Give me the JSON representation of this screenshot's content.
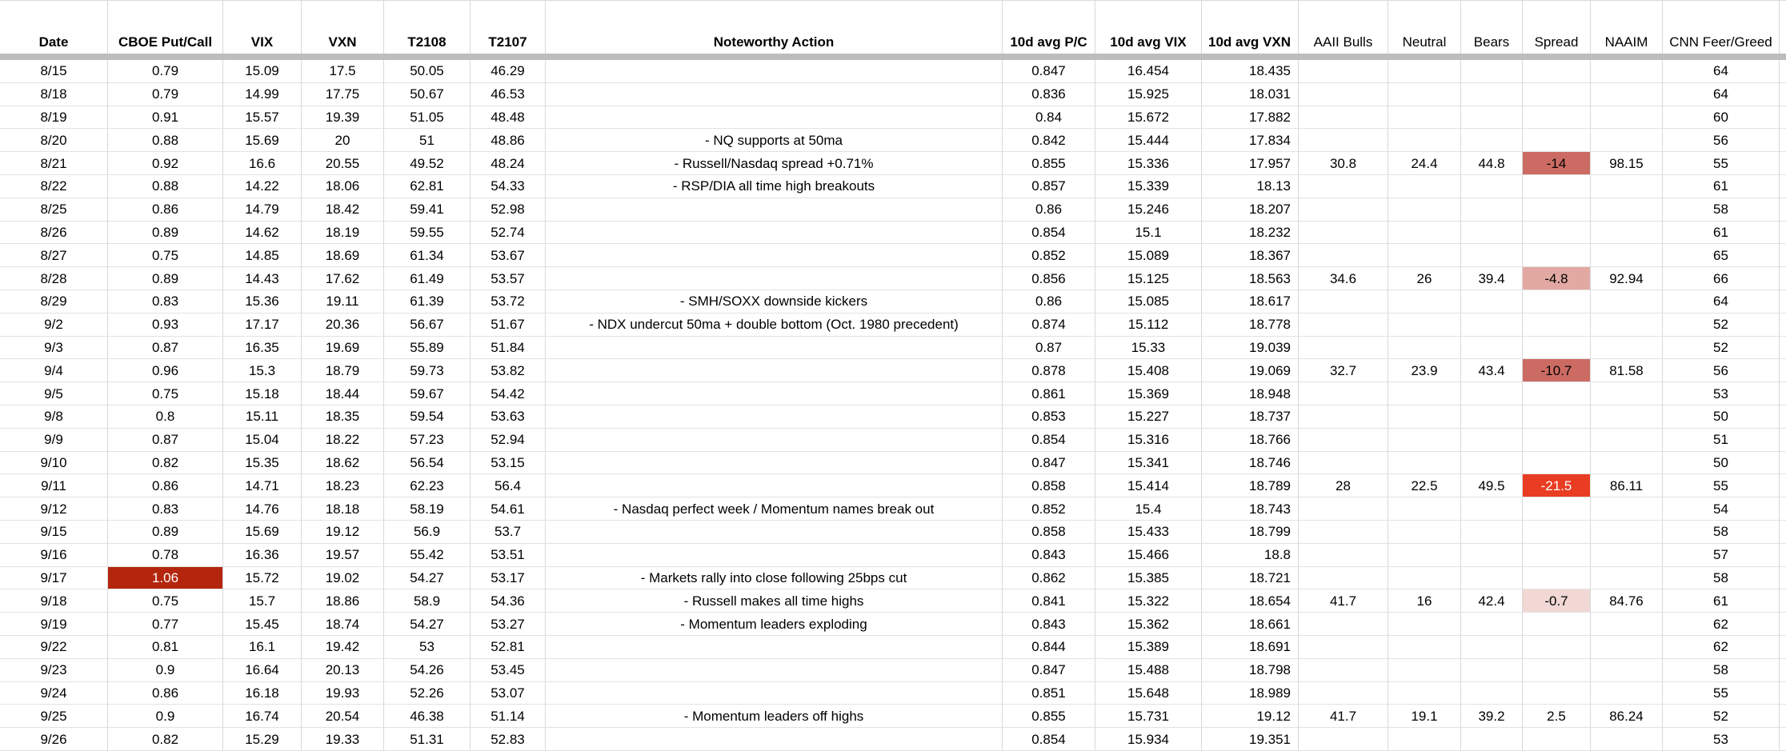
{
  "table": {
    "columns": [
      {
        "label": "Date"
      },
      {
        "label": "CBOE Put/Call"
      },
      {
        "label": "VIX"
      },
      {
        "label": "VXN"
      },
      {
        "label": "T2108"
      },
      {
        "label": "T2107"
      },
      {
        "label": "Noteworthy Action"
      },
      {
        "label": "10d avg P/C"
      },
      {
        "label": "10d avg VIX"
      },
      {
        "label": "10d avg VXN"
      },
      {
        "label": "AAII Bulls"
      },
      {
        "label": "Neutral"
      },
      {
        "label": "Bears"
      },
      {
        "label": "Spread"
      },
      {
        "label": "NAAIM"
      },
      {
        "label": "CNN Feer/Greed"
      }
    ],
    "rows": [
      {
        "cells": [
          "8/15",
          "0.79",
          "15.09",
          "17.5",
          "50.05",
          "46.29",
          "",
          "0.847",
          "16.454",
          "18.435",
          "",
          "",
          "",
          "",
          "",
          "64"
        ]
      },
      {
        "cells": [
          "8/18",
          "0.79",
          "14.99",
          "17.75",
          "50.67",
          "46.53",
          "",
          "0.836",
          "15.925",
          "18.031",
          "",
          "",
          "",
          "",
          "",
          "64"
        ]
      },
      {
        "cells": [
          "8/19",
          "0.91",
          "15.57",
          "19.39",
          "51.05",
          "48.48",
          "",
          "0.84",
          "15.672",
          "17.882",
          "",
          "",
          "",
          "",
          "",
          "60"
        ]
      },
      {
        "cells": [
          "8/20",
          "0.88",
          "15.69",
          "20",
          "51",
          "48.86",
          "- NQ supports at 50ma",
          "0.842",
          "15.444",
          "17.834",
          "",
          "",
          "",
          "",
          "",
          "56"
        ]
      },
      {
        "cells": [
          "8/21",
          "0.92",
          "16.6",
          "20.55",
          "49.52",
          "48.24",
          "- Russell/Nasdaq spread +0.71%",
          "0.855",
          "15.336",
          "17.957",
          "30.8",
          "24.4",
          "44.8",
          "-14",
          "98.15",
          "55"
        ],
        "highlights": {
          "13": {
            "bg": "#cc6b63",
            "fg": "#000000"
          }
        }
      },
      {
        "cells": [
          "8/22",
          "0.88",
          "14.22",
          "18.06",
          "62.81",
          "54.33",
          "- RSP/DIA all time high breakouts",
          "0.857",
          "15.339",
          "18.13",
          "",
          "",
          "",
          "",
          "",
          "61"
        ]
      },
      {
        "cells": [
          "8/25",
          "0.86",
          "14.79",
          "18.42",
          "59.41",
          "52.98",
          "",
          "0.86",
          "15.246",
          "18.207",
          "",
          "",
          "",
          "",
          "",
          "58"
        ]
      },
      {
        "cells": [
          "8/26",
          "0.89",
          "14.62",
          "18.19",
          "59.55",
          "52.74",
          "",
          "0.854",
          "15.1",
          "18.232",
          "",
          "",
          "",
          "",
          "",
          "61"
        ]
      },
      {
        "cells": [
          "8/27",
          "0.75",
          "14.85",
          "18.69",
          "61.34",
          "53.67",
          "",
          "0.852",
          "15.089",
          "18.367",
          "",
          "",
          "",
          "",
          "",
          "65"
        ]
      },
      {
        "cells": [
          "8/28",
          "0.89",
          "14.43",
          "17.62",
          "61.49",
          "53.57",
          "",
          "0.856",
          "15.125",
          "18.563",
          "34.6",
          "26",
          "39.4",
          "-4.8",
          "92.94",
          "66"
        ],
        "highlights": {
          "13": {
            "bg": "#e2a9a3",
            "fg": "#000000"
          }
        }
      },
      {
        "cells": [
          "8/29",
          "0.83",
          "15.36",
          "19.11",
          "61.39",
          "53.72",
          "- SMH/SOXX downside kickers",
          "0.86",
          "15.085",
          "18.617",
          "",
          "",
          "",
          "",
          "",
          "64"
        ]
      },
      {
        "cells": [
          "9/2",
          "0.93",
          "17.17",
          "20.36",
          "56.67",
          "51.67",
          "- NDX undercut 50ma + double bottom (Oct. 1980 precedent)",
          "0.874",
          "15.112",
          "18.778",
          "",
          "",
          "",
          "",
          "",
          "52"
        ]
      },
      {
        "cells": [
          "9/3",
          "0.87",
          "16.35",
          "19.69",
          "55.89",
          "51.84",
          "",
          "0.87",
          "15.33",
          "19.039",
          "",
          "",
          "",
          "",
          "",
          "52"
        ]
      },
      {
        "cells": [
          "9/4",
          "0.96",
          "15.3",
          "18.79",
          "59.73",
          "53.82",
          "",
          "0.878",
          "15.408",
          "19.069",
          "32.7",
          "23.9",
          "43.4",
          "-10.7",
          "81.58",
          "56"
        ],
        "highlights": {
          "13": {
            "bg": "#cc6b63",
            "fg": "#000000"
          }
        }
      },
      {
        "cells": [
          "9/5",
          "0.75",
          "15.18",
          "18.44",
          "59.67",
          "54.42",
          "",
          "0.861",
          "15.369",
          "18.948",
          "",
          "",
          "",
          "",
          "",
          "53"
        ]
      },
      {
        "cells": [
          "9/8",
          "0.8",
          "15.11",
          "18.35",
          "59.54",
          "53.63",
          "",
          "0.853",
          "15.227",
          "18.737",
          "",
          "",
          "",
          "",
          "",
          "50"
        ]
      },
      {
        "cells": [
          "9/9",
          "0.87",
          "15.04",
          "18.22",
          "57.23",
          "52.94",
          "",
          "0.854",
          "15.316",
          "18.766",
          "",
          "",
          "",
          "",
          "",
          "51"
        ]
      },
      {
        "cells": [
          "9/10",
          "0.82",
          "15.35",
          "18.62",
          "56.54",
          "53.15",
          "",
          "0.847",
          "15.341",
          "18.746",
          "",
          "",
          "",
          "",
          "",
          "50"
        ]
      },
      {
        "cells": [
          "9/11",
          "0.86",
          "14.71",
          "18.23",
          "62.23",
          "56.4",
          "",
          "0.858",
          "15.414",
          "18.789",
          "28",
          "22.5",
          "49.5",
          "-21.5",
          "86.11",
          "55"
        ],
        "highlights": {
          "13": {
            "bg": "#e93d23",
            "fg": "#ffffff"
          }
        }
      },
      {
        "cells": [
          "9/12",
          "0.83",
          "14.76",
          "18.18",
          "58.19",
          "54.61",
          "- Nasdaq perfect week / Momentum names break out",
          "0.852",
          "15.4",
          "18.743",
          "",
          "",
          "",
          "",
          "",
          "54"
        ]
      },
      {
        "cells": [
          "9/15",
          "0.89",
          "15.69",
          "19.12",
          "56.9",
          "53.7",
          "",
          "0.858",
          "15.433",
          "18.799",
          "",
          "",
          "",
          "",
          "",
          "58"
        ]
      },
      {
        "cells": [
          "9/16",
          "0.78",
          "16.36",
          "19.57",
          "55.42",
          "53.51",
          "",
          "0.843",
          "15.466",
          "18.8",
          "",
          "",
          "",
          "",
          "",
          "57"
        ]
      },
      {
        "cells": [
          "9/17",
          "1.06",
          "15.72",
          "19.02",
          "54.27",
          "53.17",
          "- Markets rally into close following 25bps cut",
          "0.862",
          "15.385",
          "18.721",
          "",
          "",
          "",
          "",
          "",
          "58"
        ],
        "highlights": {
          "1": {
            "bg": "#b3250c",
            "fg": "#ffffff"
          }
        }
      },
      {
        "cells": [
          "9/18",
          "0.75",
          "15.7",
          "18.86",
          "58.9",
          "54.36",
          "- Russell makes all time highs",
          "0.841",
          "15.322",
          "18.654",
          "41.7",
          "16",
          "42.4",
          "-0.7",
          "84.76",
          "61"
        ],
        "highlights": {
          "13": {
            "bg": "#f1d8d4",
            "fg": "#000000"
          }
        }
      },
      {
        "cells": [
          "9/19",
          "0.77",
          "15.45",
          "18.74",
          "54.27",
          "53.27",
          "- Momentum leaders exploding",
          "0.843",
          "15.362",
          "18.661",
          "",
          "",
          "",
          "",
          "",
          "62"
        ]
      },
      {
        "cells": [
          "9/22",
          "0.81",
          "16.1",
          "19.42",
          "53",
          "52.81",
          "",
          "0.844",
          "15.389",
          "18.691",
          "",
          "",
          "",
          "",
          "",
          "62"
        ]
      },
      {
        "cells": [
          "9/23",
          "0.9",
          "16.64",
          "20.13",
          "54.26",
          "53.45",
          "",
          "0.847",
          "15.488",
          "18.798",
          "",
          "",
          "",
          "",
          "",
          "58"
        ]
      },
      {
        "cells": [
          "9/24",
          "0.86",
          "16.18",
          "19.93",
          "52.26",
          "53.07",
          "",
          "0.851",
          "15.648",
          "18.989",
          "",
          "",
          "",
          "",
          "",
          "55"
        ]
      },
      {
        "cells": [
          "9/25",
          "0.9",
          "16.74",
          "20.54",
          "46.38",
          "51.14",
          "- Momentum leaders off highs",
          "0.855",
          "15.731",
          "19.12",
          "41.7",
          "19.1",
          "39.2",
          "2.5",
          "86.24",
          "52"
        ]
      },
      {
        "cells": [
          "9/26",
          "0.82",
          "15.29",
          "19.33",
          "51.31",
          "52.83",
          "",
          "0.854",
          "15.934",
          "19.351",
          "",
          "",
          "",
          "",
          "",
          "53"
        ]
      }
    ]
  },
  "colors": {
    "frozen_divider": "#bdbdbd",
    "gridline_vertical": "#d9d9d9",
    "gridline_horizontal": "#e2e2e2",
    "highlight_strong_red": "#e93d23",
    "highlight_dark_red": "#b3250c",
    "highlight_medium_red": "#cc6b63",
    "highlight_light_pink": "#e2a9a3",
    "highlight_very_light_pink": "#f1d8d4"
  }
}
